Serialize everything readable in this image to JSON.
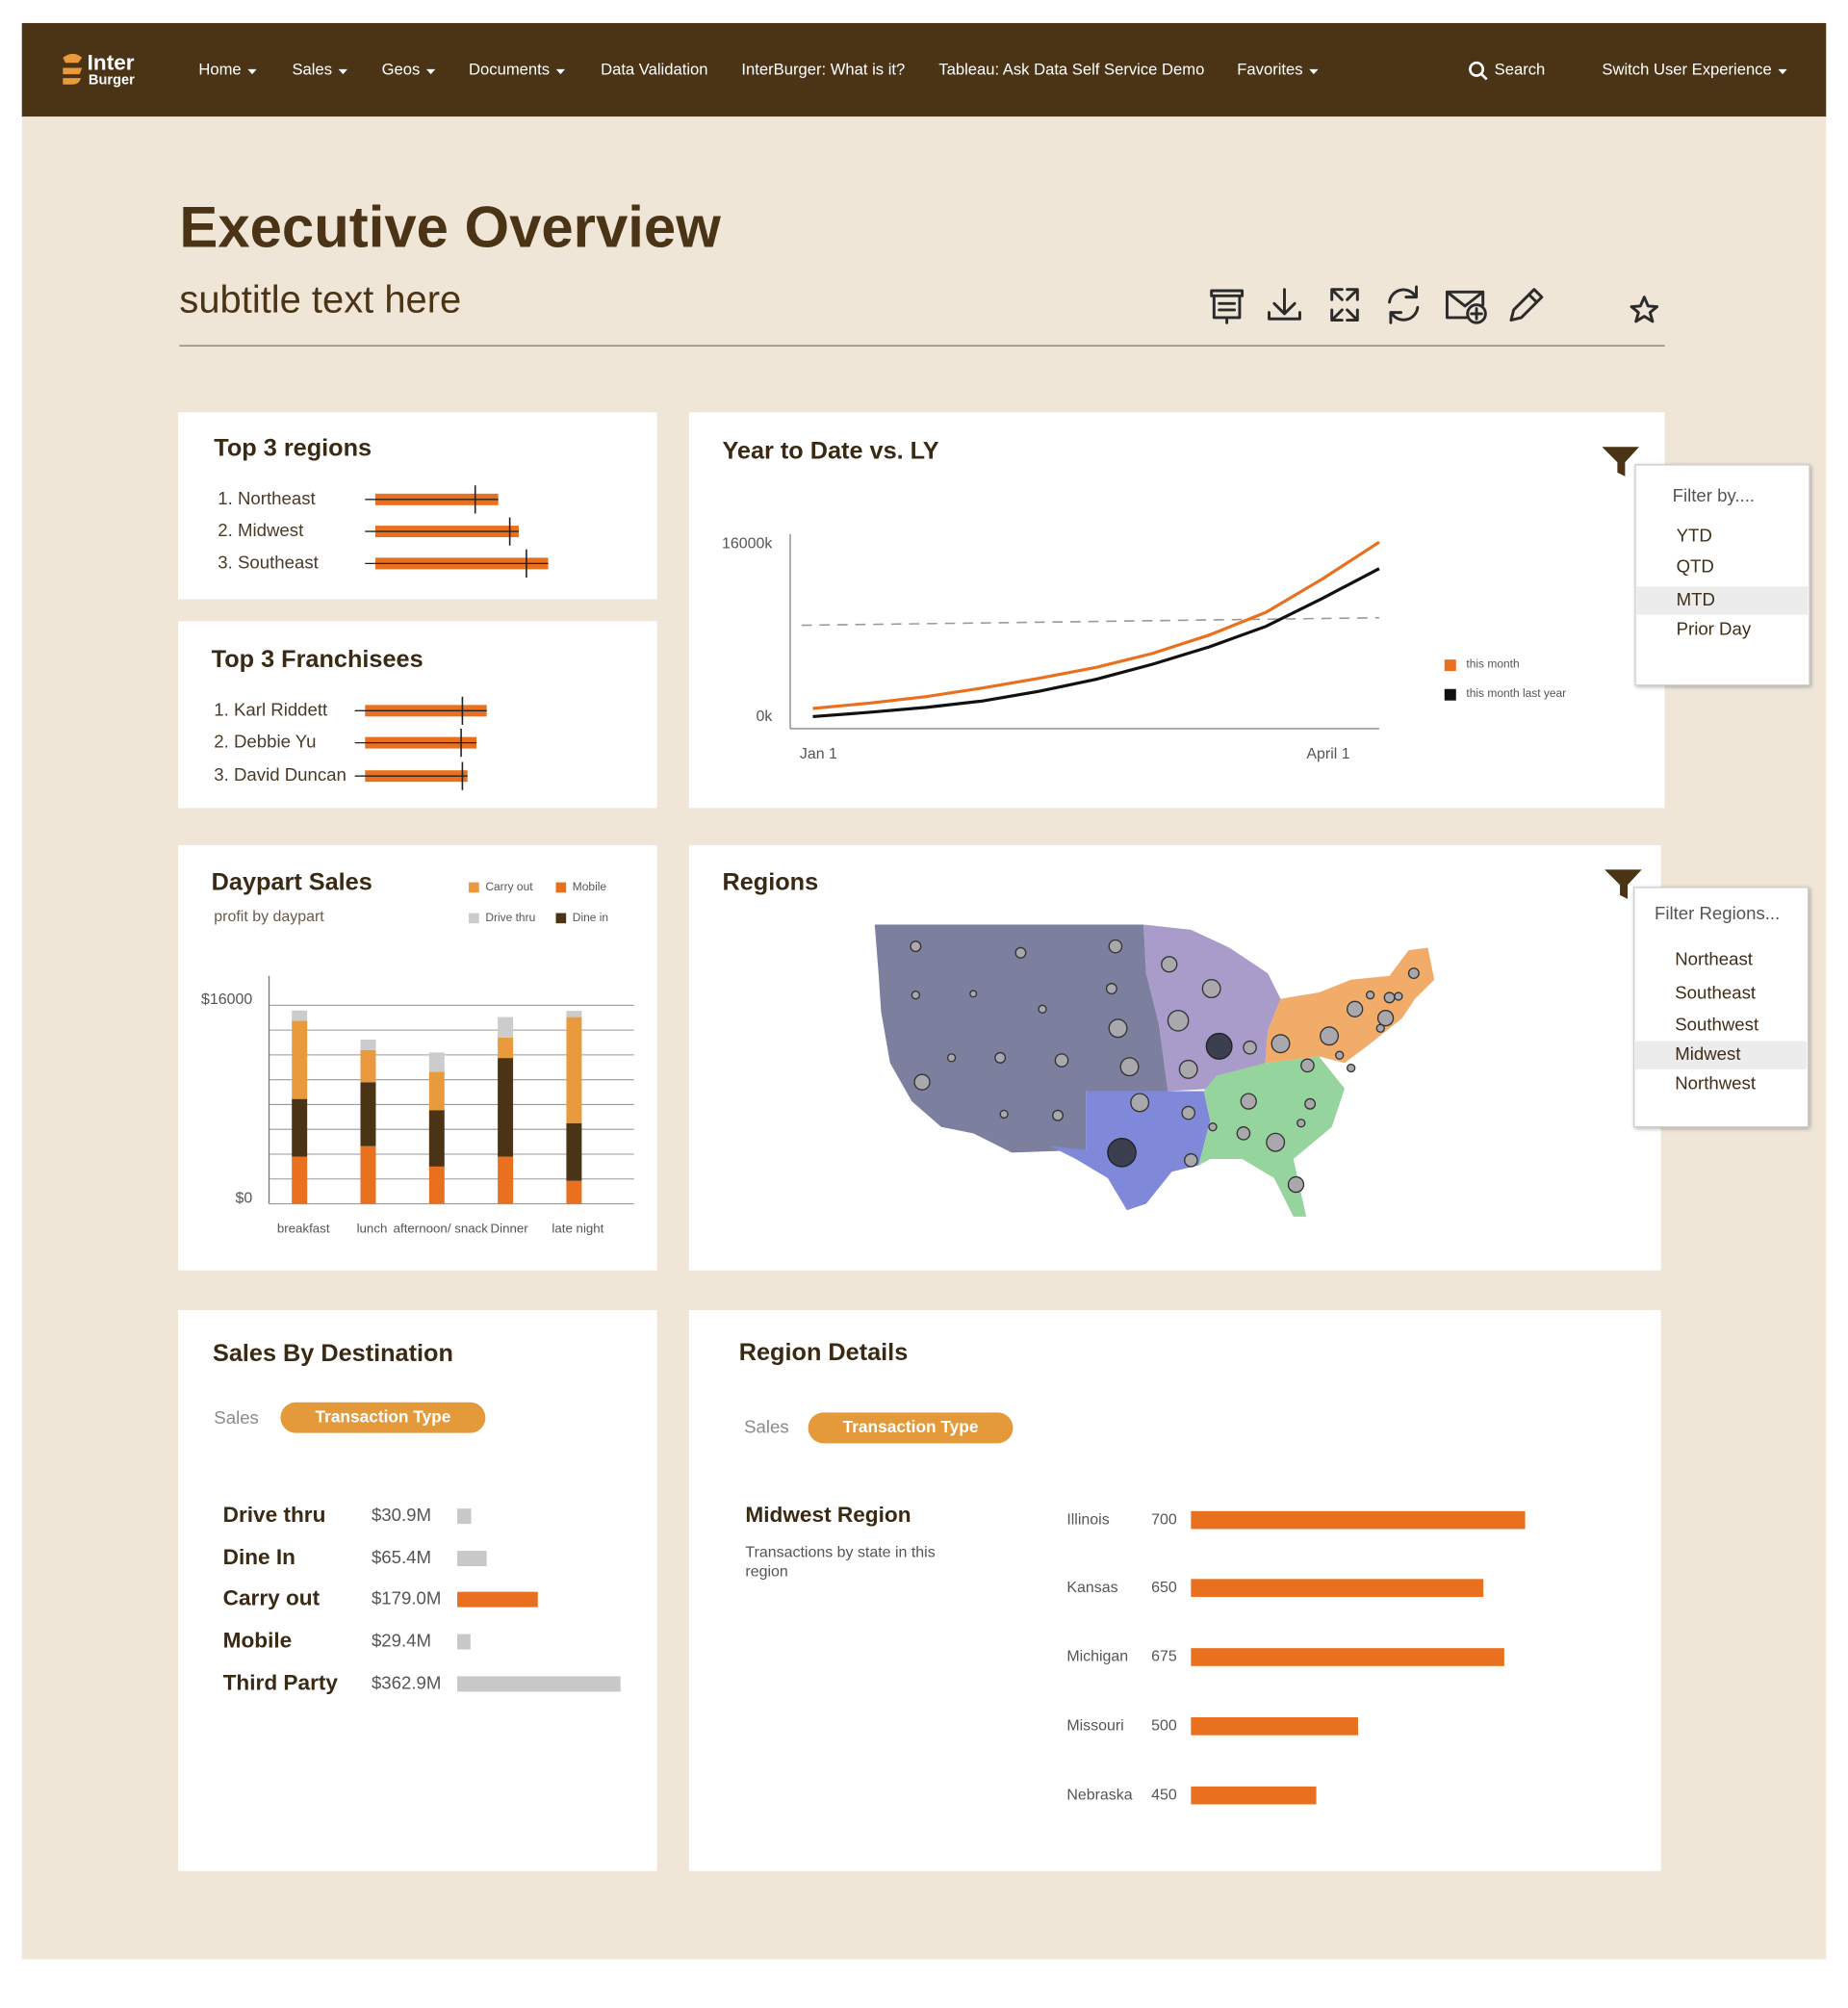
{
  "nav": {
    "logo": [
      "Inter",
      "Burger"
    ],
    "items": [
      {
        "label": "Home",
        "dropdown": true
      },
      {
        "label": "Sales",
        "dropdown": true
      },
      {
        "label": "Geos",
        "dropdown": true
      },
      {
        "label": "Documents",
        "dropdown": true
      },
      {
        "label": "Data Validation",
        "dropdown": false
      },
      {
        "label": "InterBurger: What is it?",
        "dropdown": false
      },
      {
        "label": "Tableau: Ask Data Self Service Demo",
        "dropdown": false
      },
      {
        "label": "Favorites",
        "dropdown": true
      }
    ],
    "search": "Search",
    "user_menu": "Switch User Experience"
  },
  "header": {
    "title": "Executive Overview",
    "subtitle": "subtitle text here"
  },
  "filters": [
    {
      "title": "Filter by....",
      "options": [
        "YTD",
        "QTD",
        "MTD",
        "Prior Day"
      ],
      "selected": 2
    },
    {
      "title": "Filter Regions...",
      "options": [
        "Northeast",
        "Southeast",
        "Southwest",
        "Midwest",
        "Northwest"
      ],
      "selected": 3
    }
  ],
  "regions_map": {
    "title": "Regions"
  },
  "chart_data": [
    {
      "type": "bullet",
      "title": "Top 3 regions",
      "categories": [
        "1. Northeast",
        "2. Midwest",
        "3. Southeast"
      ],
      "values": [
        96,
        112,
        135
      ],
      "targets": [
        78,
        105,
        118
      ],
      "xlim": [
        0,
        150
      ],
      "color": "#e8701e"
    },
    {
      "type": "bullet",
      "title": "Top 3 Franchisees",
      "categories": [
        "1. Karl Riddett",
        "2. Debbie Yu",
        "3. David Duncan"
      ],
      "values": [
        95,
        87,
        80
      ],
      "targets": [
        76,
        75,
        76
      ],
      "xlim": [
        0,
        150
      ],
      "color": "#e8701e"
    },
    {
      "type": "line",
      "title": "Year to Date vs. LY",
      "x": [
        0,
        10,
        20,
        30,
        40,
        50,
        60,
        70,
        80,
        90,
        100
      ],
      "xlim": [
        -4,
        100
      ],
      "xticks": [
        {
          "value": 1,
          "label": "Jan 1"
        },
        {
          "value": 91,
          "label": "April 1"
        }
      ],
      "ylim": [
        0,
        16000
      ],
      "yticks": [
        {
          "value": 0,
          "label": "0k"
        },
        {
          "value": 16000,
          "label": "16000k"
        }
      ],
      "series": [
        {
          "name": "this month",
          "color": "#e8701e",
          "values": [
            800,
            1300,
            1900,
            2700,
            3600,
            4600,
            5900,
            7600,
            9700,
            12800,
            16200
          ]
        },
        {
          "name": "this month last year",
          "color": "#111111",
          "values": [
            50,
            450,
            900,
            1500,
            2400,
            3500,
            4900,
            6500,
            8400,
            11000,
            13750
          ]
        }
      ],
      "reference_line": {
        "x": [
          -2,
          100
        ],
        "values": [
          8500,
          9200
        ],
        "color": "#999999"
      }
    },
    {
      "type": "stacked_bar",
      "title": "Daypart Sales",
      "subtitle": "profit by daypart",
      "categories": [
        "breakfast",
        "lunch",
        "afternoon/ snack",
        "Dinner",
        "late night"
      ],
      "series": [
        {
          "name": "Carry out",
          "color": "#e89a3c",
          "values": [
            6300,
            2600,
            3100,
            1650,
            8550
          ]
        },
        {
          "name": "Mobile",
          "color": "#e8701e",
          "values": [
            3800,
            4650,
            3000,
            3800,
            1850
          ]
        },
        {
          "name": "Drive thru",
          "color": "#cccccc",
          "values": [
            830,
            830,
            1550,
            1650,
            500
          ]
        },
        {
          "name": "Dine in",
          "color": "#4a3415",
          "values": [
            4650,
            5150,
            4550,
            7950,
            4650
          ]
        }
      ],
      "stack_order": [
        1,
        3,
        0,
        2
      ],
      "ylim": [
        0,
        16000
      ],
      "yticks": [
        {
          "value": 0,
          "label": "$0"
        },
        {
          "value": 16000,
          "label": "$16000"
        }
      ],
      "grid_lines": [
        0,
        2000,
        4000,
        6000,
        8000,
        10000,
        12000,
        14000,
        16000
      ]
    },
    {
      "type": "hbar",
      "title": "Sales By Destination",
      "measure_label": "Sales",
      "dimension_pill": "Transaction Type",
      "categories": [
        "Drive thru",
        "Dine In",
        "Carry out",
        "Mobile",
        "Third Party"
      ],
      "values": [
        30.9,
        65.4,
        179.0,
        29.4,
        362.9
      ],
      "value_labels": [
        "$30.9M",
        "$65.4M",
        "$179.0M",
        "$29.4M",
        "$362.9M"
      ],
      "colors": [
        "#c8c8c8",
        "#c8c8c8",
        "#e8701e",
        "#c8c8c8",
        "#c8c8c8"
      ],
      "xlim": [
        0,
        370
      ]
    },
    {
      "type": "hbar",
      "title": "Region Details",
      "measure_label": "Sales",
      "dimension_pill": "Transaction Type",
      "region": "Midwest Region",
      "description": "Transactions by state in this region",
      "categories": [
        "Illinois",
        "Kansas",
        "Michigan",
        "Missouri",
        "Nebraska"
      ],
      "values": [
        700,
        650,
        675,
        500,
        450
      ],
      "color": "#e8701e",
      "xlim": [
        300,
        750
      ]
    }
  ]
}
